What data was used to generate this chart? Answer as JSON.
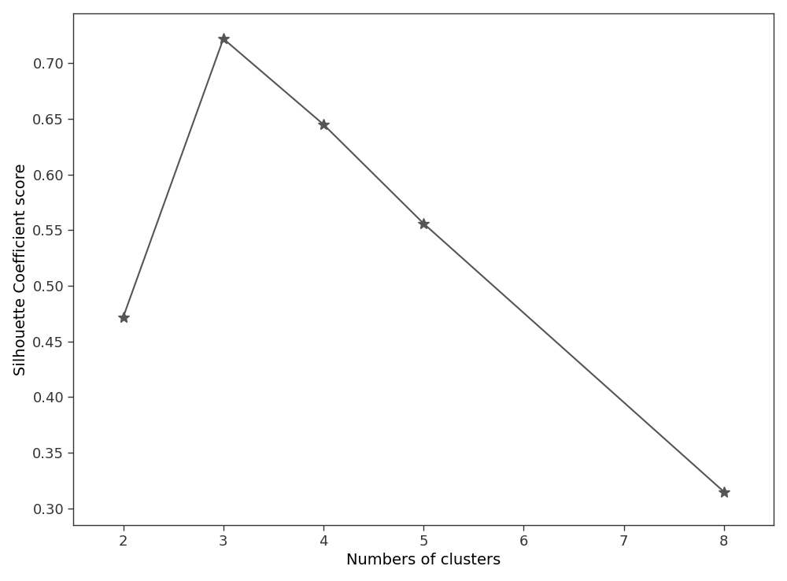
{
  "x": [
    2,
    3,
    4,
    5,
    8
  ],
  "y": [
    0.472,
    0.722,
    0.645,
    0.556,
    0.315
  ],
  "xlabel": "Numbers of clusters",
  "ylabel": "Silhouette Coefficient score",
  "xlim": [
    1.5,
    8.5
  ],
  "ylim": [
    0.285,
    0.745
  ],
  "xticks": [
    2,
    3,
    4,
    5,
    6,
    7,
    8
  ],
  "yticks": [
    0.3,
    0.35,
    0.4,
    0.45,
    0.5,
    0.55,
    0.6,
    0.65,
    0.7
  ],
  "line_color": "#555555",
  "marker": "*",
  "marker_size": 10,
  "line_width": 1.5,
  "background_color": "#ffffff",
  "xlabel_fontsize": 14,
  "ylabel_fontsize": 14,
  "tick_fontsize": 13,
  "spine_color": "#333333"
}
